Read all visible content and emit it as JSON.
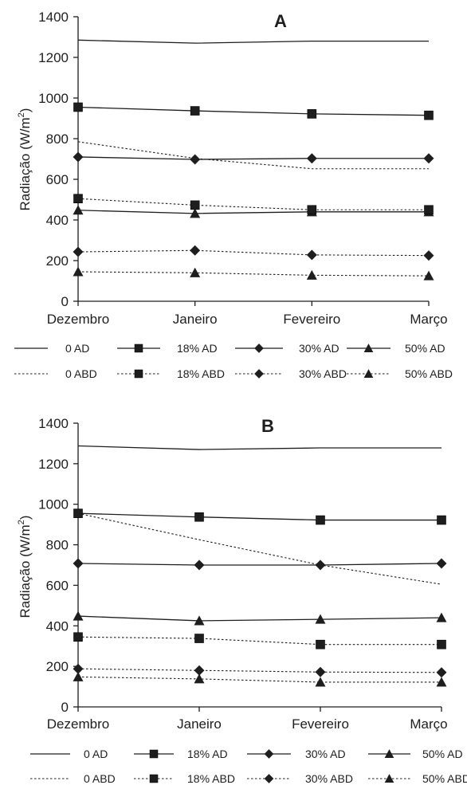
{
  "chart_data": [
    {
      "type": "line",
      "title": "A",
      "ylabel_main": "Radiação (W/m",
      "ylabel_sup": "2",
      "ylabel_end": ")",
      "xlabel": "",
      "categories": [
        "Dezembro",
        "Janeiro",
        "Fevereiro",
        "Março"
      ],
      "ylim": [
        0,
        1400
      ],
      "yticks": [
        "0",
        "200",
        "400",
        "600",
        "800",
        "1000",
        "1200",
        "1400"
      ],
      "grid": false,
      "legend_position": "bottom",
      "series": [
        {
          "name": "0 AD",
          "values": [
            1285,
            1270,
            1280,
            1280
          ],
          "style": "solid",
          "marker": "none"
        },
        {
          "name": "18% AD",
          "values": [
            955,
            937,
            922,
            915
          ],
          "style": "solid",
          "marker": "square"
        },
        {
          "name": "30% AD",
          "values": [
            710,
            698,
            703,
            703
          ],
          "style": "solid",
          "marker": "diamond"
        },
        {
          "name": "50% AD",
          "values": [
            448,
            432,
            440,
            440
          ],
          "style": "solid",
          "marker": "triangle"
        },
        {
          "name": "0 ABD",
          "values": [
            785,
            703,
            652,
            652
          ],
          "style": "dotted",
          "marker": "none"
        },
        {
          "name": "18% ABD",
          "values": [
            505,
            473,
            450,
            450
          ],
          "style": "dotted",
          "marker": "square"
        },
        {
          "name": "30% ABD",
          "values": [
            243,
            250,
            228,
            225
          ],
          "style": "dotted",
          "marker": "diamond"
        },
        {
          "name": "50% ABD",
          "values": [
            145,
            140,
            128,
            125
          ],
          "style": "dotted",
          "marker": "triangle"
        }
      ]
    },
    {
      "type": "line",
      "title": "B",
      "ylabel_main": "Radiação (W/m",
      "ylabel_sup": "2",
      "ylabel_end": ")",
      "xlabel": "",
      "categories": [
        "Dezembro",
        "Janeiro",
        "Fevereiro",
        "Março"
      ],
      "ylim": [
        0,
        1400
      ],
      "yticks": [
        "0",
        "200",
        "400",
        "600",
        "800",
        "1000",
        "1200",
        "1400"
      ],
      "grid": false,
      "legend_position": "bottom",
      "series": [
        {
          "name": "0 AD",
          "values": [
            1288,
            1270,
            1278,
            1278
          ],
          "style": "solid",
          "marker": "none"
        },
        {
          "name": "18% AD",
          "values": [
            955,
            937,
            922,
            922
          ],
          "style": "solid",
          "marker": "square"
        },
        {
          "name": "30% AD",
          "values": [
            708,
            700,
            700,
            708
          ],
          "style": "solid",
          "marker": "diamond"
        },
        {
          "name": "50% AD",
          "values": [
            448,
            425,
            432,
            440
          ],
          "style": "solid",
          "marker": "triangle"
        },
        {
          "name": "0 ABD",
          "values": [
            955,
            825,
            700,
            605
          ],
          "style": "dotted",
          "marker": "none"
        },
        {
          "name": "18% ABD",
          "values": [
            345,
            338,
            308,
            308
          ],
          "style": "dotted",
          "marker": "square"
        },
        {
          "name": "30% ABD",
          "values": [
            188,
            180,
            172,
            170
          ],
          "style": "dotted",
          "marker": "diamond"
        },
        {
          "name": "50% ABD",
          "values": [
            148,
            138,
            122,
            122
          ],
          "style": "dotted",
          "marker": "triangle"
        }
      ]
    }
  ]
}
